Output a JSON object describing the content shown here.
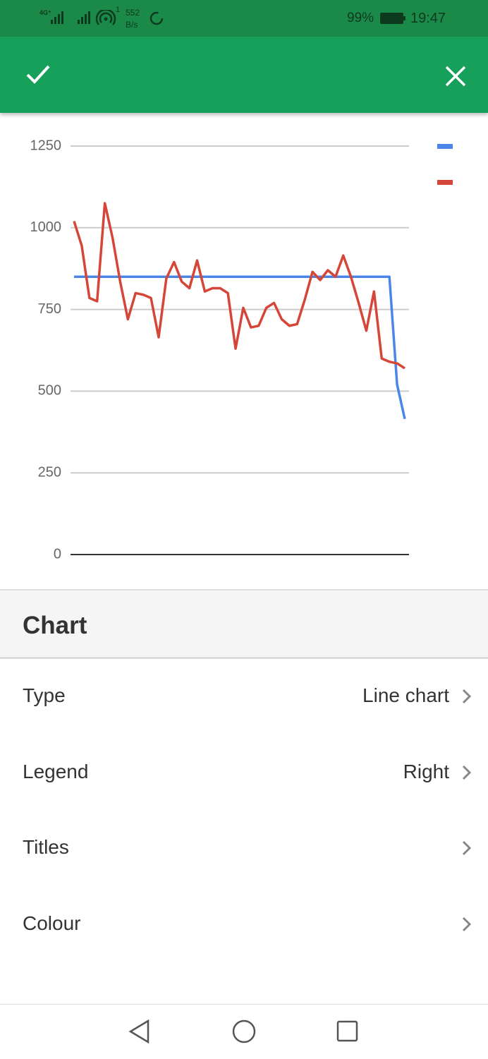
{
  "status_bar": {
    "network": "4G⁺",
    "hotspot_count": "1",
    "speed": "552",
    "speed_unit": "B/s",
    "battery": "99%",
    "time": "19:47"
  },
  "chart_data": {
    "type": "line",
    "categories": [
      null,
      null,
      null,
      null,
      null,
      null,
      null,
      null,
      null,
      null,
      null,
      null,
      null,
      null,
      null,
      null,
      null,
      null,
      null,
      null,
      null,
      null,
      null,
      null,
      null,
      null,
      null,
      null,
      null,
      null,
      null,
      null,
      null,
      null,
      null,
      null,
      null,
      null,
      null,
      null,
      null,
      null,
      null,
      null
    ],
    "series": [
      {
        "color": "#4a86e8",
        "values": [
          850,
          850,
          850,
          850,
          850,
          850,
          850,
          850,
          850,
          850,
          850,
          850,
          850,
          850,
          850,
          850,
          850,
          850,
          850,
          850,
          850,
          850,
          850,
          850,
          850,
          850,
          850,
          850,
          850,
          850,
          850,
          850,
          850,
          850,
          850,
          850,
          850,
          850,
          850,
          850,
          850,
          850,
          520,
          415
        ]
      },
      {
        "color": "#d64638",
        "values": [
          1020,
          945,
          785,
          775,
          1075,
          970,
          835,
          720,
          800,
          795,
          785,
          665,
          845,
          895,
          835,
          815,
          900,
          805,
          815,
          815,
          800,
          630,
          755,
          695,
          700,
          755,
          770,
          720,
          700,
          705,
          780,
          865,
          840,
          870,
          850,
          915,
          850,
          770,
          685,
          805,
          600,
          590,
          585,
          570
        ]
      }
    ],
    "ylim": [
      0,
      1250
    ],
    "yticks": [
      0,
      250,
      500,
      750,
      1000,
      1250
    ],
    "grid": true,
    "legend": "right"
  },
  "settings": {
    "title": "Chart",
    "items": [
      {
        "label": "Type",
        "value": "Line chart"
      },
      {
        "label": "Legend",
        "value": "Right"
      },
      {
        "label": "Titles"
      },
      {
        "label": "Colour"
      }
    ]
  }
}
